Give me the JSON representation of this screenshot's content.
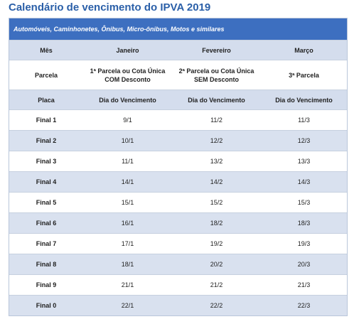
{
  "title": "Calendário de vencimento do IPVA 2019",
  "banner": "Automóveis, Caminhonetes, Ônibus, Micro-ônibus, Motos e similares",
  "header": {
    "col1": "Mês",
    "col2": "Janeiro",
    "col3": "Fevereiro",
    "col4": "Março"
  },
  "parcela": {
    "label": "Parcela",
    "p1_line1": "1ª Parcela ou Cota Única",
    "p1_line2": "COM Desconto",
    "p2_line1": "2ª Parcela ou Cota Única",
    "p2_line2": "SEM Desconto",
    "p3": "3ª Parcela"
  },
  "placa_header": {
    "col1": "Placa",
    "col2": "Dia do Vencimento",
    "col3": "Dia do Vencimento",
    "col4": "Dia do Vencimento"
  },
  "rows": [
    {
      "final": "Final 1",
      "jan": "9/1",
      "fev": "11/2",
      "mar": "11/3"
    },
    {
      "final": "Final 2",
      "jan": "10/1",
      "fev": "12/2",
      "mar": "12/3"
    },
    {
      "final": "Final 3",
      "jan": "11/1",
      "fev": "13/2",
      "mar": "13/3"
    },
    {
      "final": "Final 4",
      "jan": "14/1",
      "fev": "14/2",
      "mar": "14/3"
    },
    {
      "final": "Final 5",
      "jan": "15/1",
      "fev": "15/2",
      "mar": "15/3"
    },
    {
      "final": "Final 6",
      "jan": "16/1",
      "fev": "18/2",
      "mar": "18/3"
    },
    {
      "final": "Final 7",
      "jan": "17/1",
      "fev": "19/2",
      "mar": "19/3"
    },
    {
      "final": "Final 8",
      "jan": "18/1",
      "fev": "20/2",
      "mar": "20/3"
    },
    {
      "final": "Final 9",
      "jan": "21/1",
      "fev": "21/2",
      "mar": "21/3"
    },
    {
      "final": "Final 0",
      "jan": "22/1",
      "fev": "22/2",
      "mar": "22/3"
    }
  ]
}
